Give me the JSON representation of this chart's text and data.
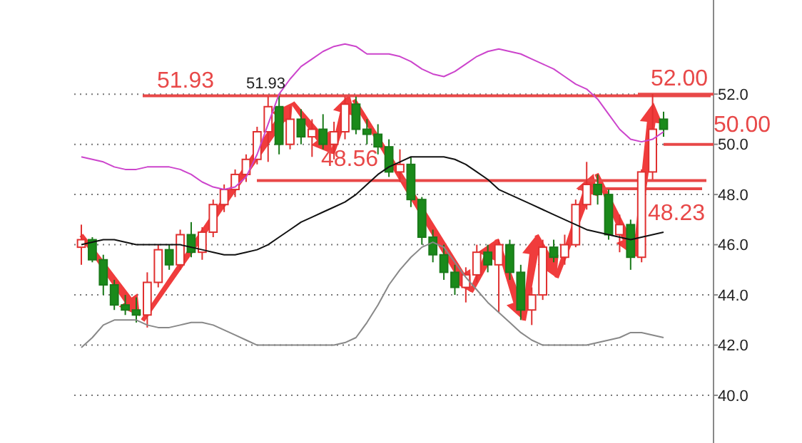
{
  "chart_data": {
    "type": "candlestick",
    "categories": [
      null,
      null,
      null,
      null,
      null,
      null,
      null,
      null,
      null,
      null,
      null,
      null,
      null,
      null,
      null,
      null,
      null,
      null,
      null,
      null,
      null,
      null,
      null,
      null,
      null,
      null,
      null,
      null,
      null,
      null,
      null,
      null,
      null,
      null,
      null,
      null,
      null,
      null,
      null,
      null,
      null,
      null,
      null,
      null,
      null,
      null,
      null,
      null,
      null,
      null,
      null,
      null,
      null,
      null
    ],
    "ohlc": [
      [
        45.9,
        46.8,
        45.2,
        46.2
      ],
      [
        46.2,
        46.3,
        45.3,
        45.4
      ],
      [
        45.4,
        45.6,
        44.0,
        44.4
      ],
      [
        44.4,
        44.6,
        43.4,
        43.6
      ],
      [
        43.6,
        44.0,
        43.2,
        43.4
      ],
      [
        43.4,
        43.9,
        42.9,
        43.2
      ],
      [
        43.2,
        44.9,
        42.7,
        44.5
      ],
      [
        44.5,
        46.0,
        44.3,
        45.8
      ],
      [
        45.8,
        46.0,
        45.0,
        45.2
      ],
      [
        45.2,
        46.6,
        45.0,
        46.4
      ],
      [
        46.4,
        46.9,
        45.5,
        45.7
      ],
      [
        45.7,
        46.7,
        45.4,
        46.5
      ],
      [
        46.5,
        47.8,
        46.3,
        47.6
      ],
      [
        47.6,
        48.4,
        47.3,
        48.2
      ],
      [
        48.2,
        49.0,
        47.9,
        48.8
      ],
      [
        48.8,
        49.6,
        48.5,
        49.4
      ],
      [
        49.4,
        50.7,
        49.2,
        50.5
      ],
      [
        50.5,
        51.9,
        49.3,
        51.5
      ],
      [
        51.5,
        51.93,
        49.6,
        50.0
      ],
      [
        50.0,
        51.5,
        49.8,
        51.0
      ],
      [
        51.0,
        51.4,
        50.0,
        50.3
      ],
      [
        50.3,
        51.0,
        49.5,
        50.6
      ],
      [
        50.6,
        51.2,
        49.8,
        50.0
      ],
      [
        50.0,
        50.9,
        49.4,
        50.5
      ],
      [
        50.5,
        51.9,
        50.2,
        51.6
      ],
      [
        51.6,
        51.9,
        50.4,
        50.6
      ],
      [
        50.6,
        51.0,
        50.0,
        50.4
      ],
      [
        50.4,
        50.8,
        49.6,
        49.9
      ],
      [
        49.9,
        50.2,
        48.7,
        48.9
      ],
      [
        48.9,
        49.8,
        48.5,
        49.2
      ],
      [
        49.2,
        49.5,
        47.5,
        47.8
      ],
      [
        47.8,
        47.9,
        46.0,
        46.3
      ],
      [
        46.3,
        46.6,
        45.3,
        45.6
      ],
      [
        45.6,
        46.0,
        44.6,
        44.9
      ],
      [
        44.9,
        45.2,
        44.0,
        44.3
      ],
      [
        44.3,
        45.1,
        43.7,
        44.8
      ],
      [
        44.8,
        46.0,
        44.5,
        45.7
      ],
      [
        45.7,
        46.0,
        44.9,
        45.2
      ],
      [
        45.2,
        46.2,
        43.3,
        46.0
      ],
      [
        46.0,
        46.2,
        44.6,
        44.9
      ],
      [
        44.9,
        45.2,
        43.0,
        43.4
      ],
      [
        43.4,
        44.3,
        42.8,
        44.0
      ],
      [
        44.0,
        46.2,
        43.8,
        45.9
      ],
      [
        45.9,
        46.2,
        45.3,
        45.5
      ],
      [
        45.5,
        46.4,
        45.2,
        46.0
      ],
      [
        46.0,
        47.8,
        45.9,
        47.6
      ],
      [
        47.6,
        49.3,
        47.4,
        48.4
      ],
      [
        48.4,
        48.8,
        47.6,
        48.0
      ],
      [
        48.0,
        48.2,
        46.2,
        46.4
      ],
      [
        46.4,
        47.2,
        45.7,
        46.8
      ],
      [
        46.8,
        47.0,
        45.0,
        45.5
      ],
      [
        45.5,
        49.0,
        45.3,
        48.9
      ],
      [
        48.9,
        52.0,
        48.6,
        50.6
      ],
      [
        51.0,
        51.3,
        50.3,
        50.6
      ]
    ],
    "series": [
      {
        "type": "line",
        "color": "#cc44cc",
        "values": [
          49.5,
          49.4,
          49.3,
          49.1,
          49.0,
          49.0,
          49.1,
          49.1,
          49.1,
          49.0,
          48.8,
          48.5,
          48.3,
          48.2,
          48.3,
          48.7,
          49.6,
          50.8,
          52.0,
          52.6,
          53.1,
          53.4,
          53.7,
          53.9,
          54.0,
          53.9,
          53.6,
          53.6,
          53.6,
          53.5,
          53.3,
          53.0,
          52.8,
          52.7,
          52.9,
          53.2,
          53.5,
          53.7,
          53.8,
          53.7,
          53.6,
          53.4,
          53.2,
          53.0,
          52.7,
          52.4,
          52.2,
          51.8,
          51.2,
          50.6,
          50.2,
          50.1,
          50.2,
          50.5
        ]
      },
      {
        "type": "line",
        "color": "#111111",
        "values": [
          46.0,
          46.1,
          46.2,
          46.2,
          46.1,
          46.0,
          46.0,
          46.0,
          46.0,
          46.0,
          45.9,
          45.8,
          45.7,
          45.6,
          45.6,
          45.7,
          45.8,
          46.0,
          46.3,
          46.6,
          46.9,
          47.1,
          47.3,
          47.5,
          47.7,
          48.0,
          48.4,
          48.8,
          49.1,
          49.3,
          49.5,
          49.5,
          49.5,
          49.5,
          49.4,
          49.2,
          48.9,
          48.6,
          48.2,
          48.0,
          47.8,
          47.6,
          47.4,
          47.2,
          47.0,
          46.8,
          46.6,
          46.5,
          46.4,
          46.3,
          46.2,
          46.3,
          46.4,
          46.5
        ]
      },
      {
        "type": "line",
        "color": "#888888",
        "values": [
          41.9,
          42.3,
          42.8,
          43.0,
          43.0,
          43.0,
          42.8,
          42.7,
          42.7,
          42.8,
          42.9,
          42.9,
          42.8,
          42.6,
          42.4,
          42.2,
          42.0,
          42.0,
          42.0,
          42.0,
          42.0,
          42.0,
          42.0,
          42.0,
          42.1,
          42.3,
          42.9,
          43.6,
          44.4,
          45.0,
          45.5,
          45.9,
          46.1,
          45.9,
          45.3,
          44.7,
          44.2,
          43.7,
          43.3,
          42.9,
          42.5,
          42.2,
          42.0,
          42.0,
          42.0,
          42.0,
          42.0,
          42.1,
          42.2,
          42.3,
          42.5,
          42.5,
          42.4,
          42.3
        ]
      }
    ],
    "ylim": [
      38.1,
      55.75
    ],
    "yticks": [
      {
        "value": 40,
        "label": "40.0"
      },
      {
        "value": 42,
        "label": "42.0"
      },
      {
        "value": 44,
        "label": "44.0"
      },
      {
        "value": 46,
        "label": "46.0"
      },
      {
        "value": 48,
        "label": "48.0"
      },
      {
        "value": 50,
        "label": "50.0"
      },
      {
        "value": 52,
        "label": "52.0"
      }
    ],
    "grid": "y",
    "ref_lines": [
      {
        "axis": "y",
        "value": 51.93,
        "label": "51.93",
        "color": "#e84848"
      },
      {
        "axis": "y",
        "value": 48.56,
        "label": "48.56",
        "color": "#e84848"
      },
      {
        "axis": "y",
        "value": 52.0,
        "label": "52.00",
        "color": "#e84848"
      },
      {
        "axis": "y",
        "value": 50.0,
        "label": "50.00",
        "color": "#e84848"
      },
      {
        "axis": "y",
        "value": 48.23,
        "label": "48.23",
        "color": "#e84848"
      }
    ],
    "annotations": [
      "51.93"
    ]
  }
}
